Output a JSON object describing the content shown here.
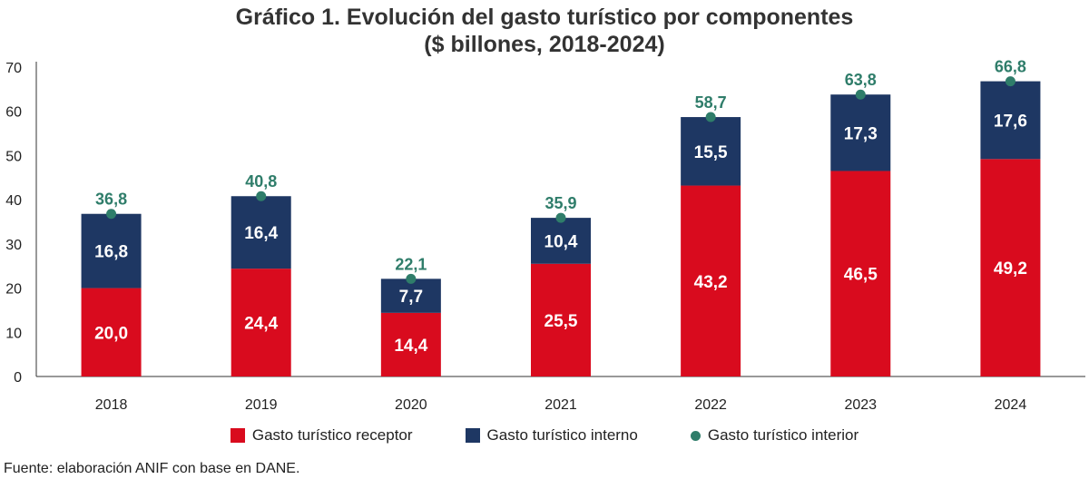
{
  "title_line1": "Gráfico 1. Evolución del gasto turístico por componentes",
  "title_line2": "($ billones, 2018-2024)",
  "source": "Fuente: elaboración ANIF con base en DANE.",
  "colors": {
    "receptor": "#d90b1e",
    "interno": "#1e3763",
    "interior": "#2f7d6a"
  },
  "chart_data": {
    "type": "bar",
    "stacked": true,
    "title": "Gráfico 1. Evolución del gasto turístico por componentes ($ billones, 2018-2024)",
    "categories": [
      "2018",
      "2019",
      "2020",
      "2021",
      "2022",
      "2023",
      "2024"
    ],
    "series": [
      {
        "name": "Gasto turístico receptor",
        "kind": "bar",
        "values": [
          20.0,
          24.4,
          14.4,
          25.5,
          43.2,
          46.5,
          49.2
        ],
        "labels": [
          "20,0",
          "24,4",
          "14,4",
          "25,5",
          "43,2",
          "46,5",
          "49,2"
        ]
      },
      {
        "name": "Gasto turístico interno",
        "kind": "bar",
        "values": [
          16.8,
          16.4,
          7.7,
          10.4,
          15.5,
          17.3,
          17.6
        ],
        "labels": [
          "16,8",
          "16,4",
          "7,7",
          "10,4",
          "15,5",
          "17,3",
          "17,6"
        ]
      },
      {
        "name": "Gasto turístico interior",
        "kind": "marker",
        "values": [
          36.8,
          40.8,
          22.1,
          35.9,
          58.7,
          63.8,
          66.8
        ],
        "labels": [
          "36,8",
          "40,8",
          "22,1",
          "35,9",
          "58,7",
          "63,8",
          "66,8"
        ]
      }
    ],
    "ylim": [
      0,
      70
    ],
    "yticks": [
      "0",
      "10",
      "20",
      "30",
      "40",
      "50",
      "60",
      "70"
    ],
    "xlabel": "",
    "ylabel": "",
    "grid": false,
    "legend_position": "bottom"
  }
}
